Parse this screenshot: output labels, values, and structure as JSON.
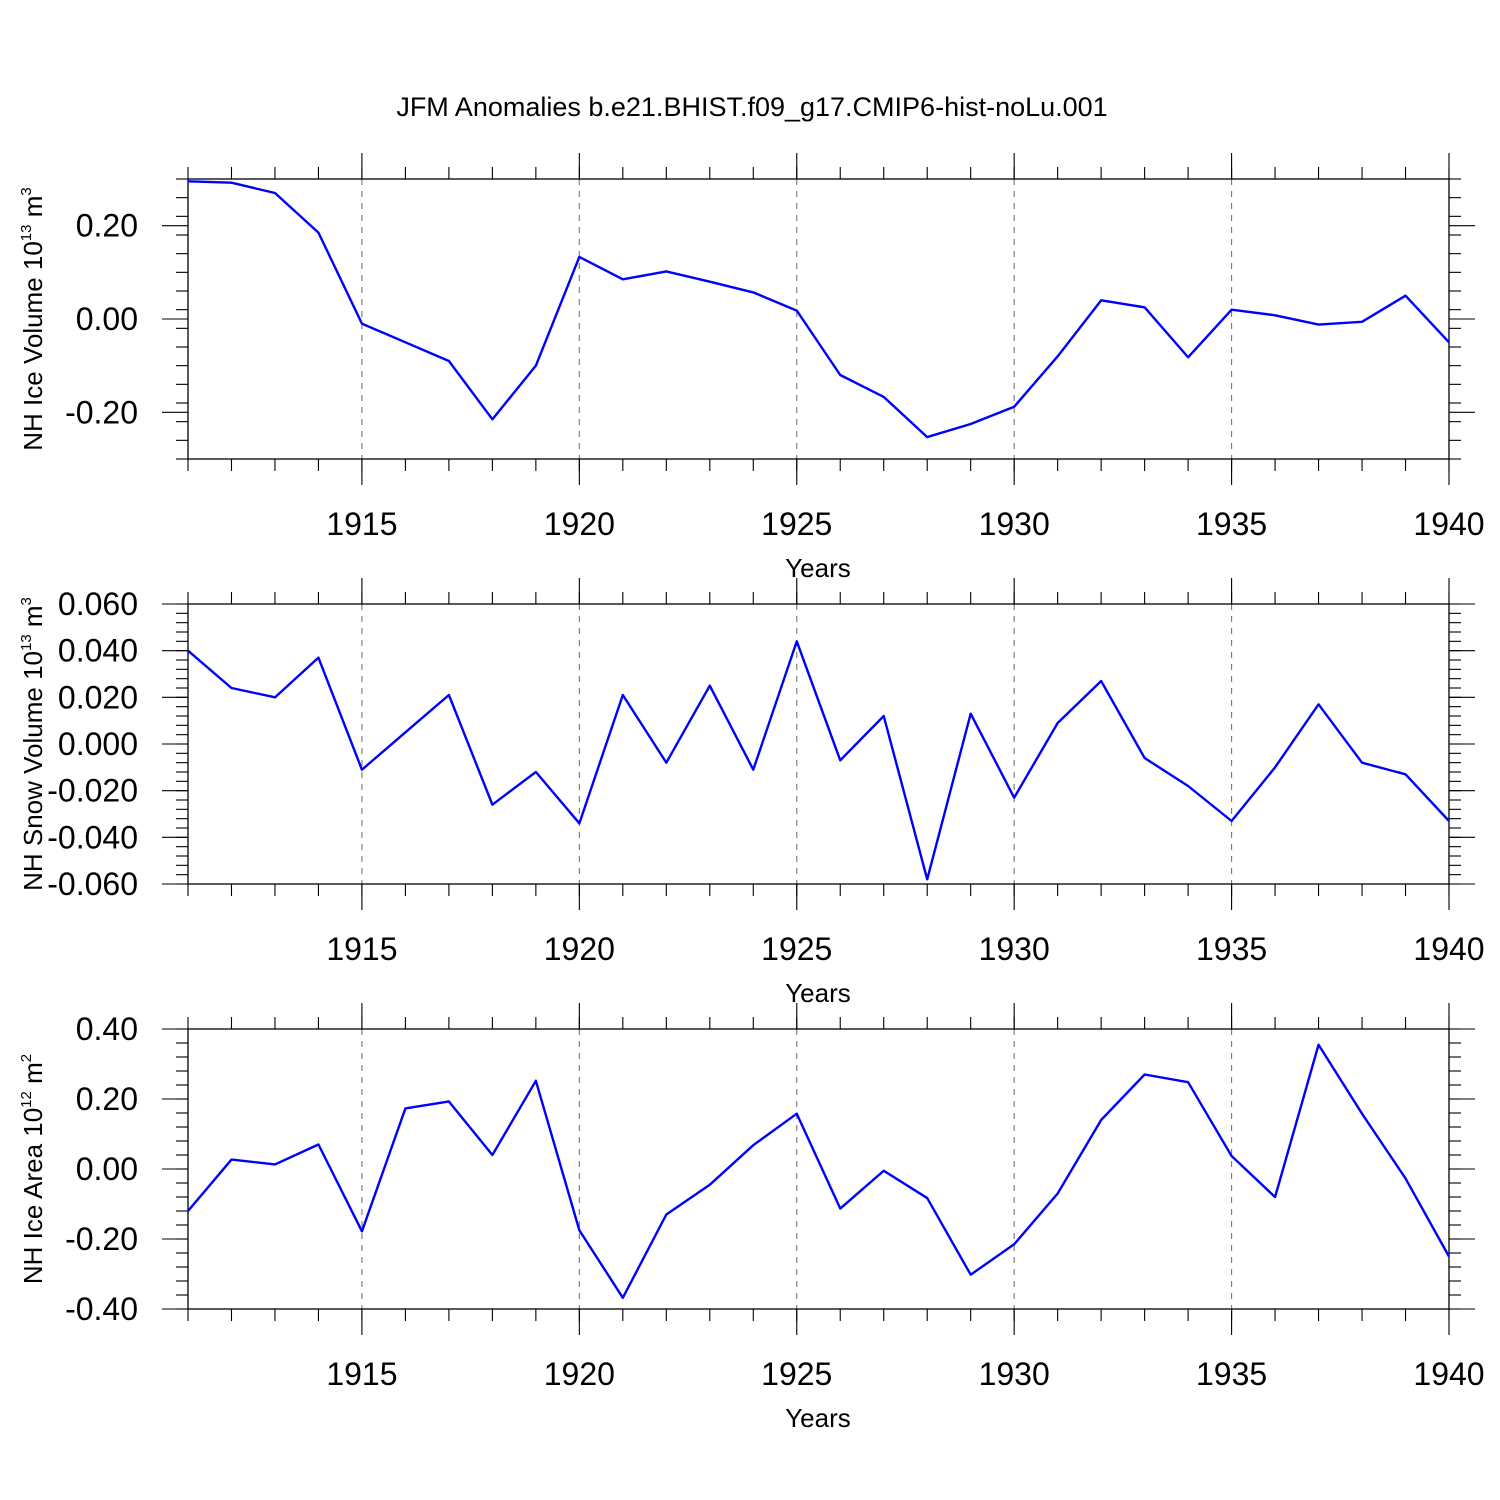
{
  "title": "JFM Anomalies b.e21.BHIST.f09_g17.CMIP6-hist-noLu.001",
  "series_color": "#0000ff",
  "chart_data": [
    {
      "type": "line",
      "name": "ice-volume",
      "ylabel_main": "NH Ice Volume 10",
      "ylabel_exp": "13",
      "ylabel_unit": " m",
      "ylabel_unit_exp": "3",
      "xlabel": "Years",
      "xlim": [
        1911,
        1940
      ],
      "ylim": [
        -0.3,
        0.3
      ],
      "yticks": [
        -0.2,
        0.0,
        0.2
      ],
      "ytick_labels": [
        "-0.20",
        "0.00",
        "0.20"
      ],
      "yminor_step": 0.04,
      "xticks": [
        1915,
        1920,
        1925,
        1930,
        1935,
        1940
      ],
      "xtick_labels": [
        "1915",
        "1920",
        "1925",
        "1930",
        "1935",
        "1940"
      ],
      "x": [
        1911,
        1912,
        1913,
        1914,
        1915,
        1916,
        1917,
        1918,
        1919,
        1920,
        1921,
        1922,
        1923,
        1924,
        1925,
        1926,
        1927,
        1928,
        1929,
        1930,
        1931,
        1932,
        1933,
        1934,
        1935,
        1936,
        1937,
        1938,
        1939,
        1940
      ],
      "y": [
        0.295,
        0.292,
        0.27,
        0.185,
        -0.01,
        -0.05,
        -0.09,
        -0.215,
        -0.1,
        0.133,
        0.085,
        0.102,
        0.08,
        0.057,
        0.018,
        -0.12,
        -0.167,
        -0.253,
        -0.225,
        -0.188,
        -0.08,
        0.04,
        0.025,
        -0.082,
        0.02,
        0.008,
        -0.012,
        -0.006,
        0.05,
        -0.05
      ]
    },
    {
      "type": "line",
      "name": "snow-volume",
      "ylabel_main": "NH Snow Volume 10",
      "ylabel_exp": "13",
      "ylabel_unit": " m",
      "ylabel_unit_exp": "3",
      "xlabel": "Years",
      "xlim": [
        1911,
        1940
      ],
      "ylim": [
        -0.06,
        0.06
      ],
      "yticks": [
        -0.06,
        -0.04,
        -0.02,
        0.0,
        0.02,
        0.04,
        0.06
      ],
      "ytick_labels": [
        "-0.060",
        "-0.040",
        "-0.020",
        "0.000",
        "0.020",
        "0.040",
        "0.060"
      ],
      "yminor_step": 0.004,
      "xticks": [
        1915,
        1920,
        1925,
        1930,
        1935,
        1940
      ],
      "xtick_labels": [
        "1915",
        "1920",
        "1925",
        "1930",
        "1935",
        "1940"
      ],
      "x": [
        1911,
        1912,
        1913,
        1914,
        1915,
        1916,
        1917,
        1918,
        1919,
        1920,
        1921,
        1922,
        1923,
        1924,
        1925,
        1926,
        1927,
        1928,
        1929,
        1930,
        1931,
        1932,
        1933,
        1934,
        1935,
        1936,
        1937,
        1938,
        1939,
        1940
      ],
      "y": [
        0.04,
        0.024,
        0.02,
        0.037,
        -0.011,
        0.005,
        0.021,
        -0.026,
        -0.012,
        -0.034,
        0.021,
        -0.008,
        0.025,
        -0.011,
        0.044,
        -0.007,
        0.012,
        -0.058,
        0.013,
        -0.023,
        0.009,
        0.027,
        -0.006,
        -0.018,
        -0.033,
        -0.01,
        0.017,
        -0.008,
        -0.013,
        -0.033
      ]
    },
    {
      "type": "line",
      "name": "ice-area",
      "ylabel_main": "NH Ice Area 10",
      "ylabel_exp": "12",
      "ylabel_unit": " m",
      "ylabel_unit_exp": "2",
      "xlabel": "Years",
      "xlim": [
        1911,
        1940
      ],
      "ylim": [
        -0.4,
        0.4
      ],
      "yticks": [
        -0.4,
        -0.2,
        0.0,
        0.2,
        0.4
      ],
      "ytick_labels": [
        "-0.40",
        "-0.20",
        "0.00",
        "0.20",
        "0.40"
      ],
      "yminor_step": 0.04,
      "xticks": [
        1915,
        1920,
        1925,
        1930,
        1935,
        1940
      ],
      "xtick_labels": [
        "1915",
        "1920",
        "1925",
        "1930",
        "1935",
        "1940"
      ],
      "x": [
        1911,
        1912,
        1913,
        1914,
        1915,
        1916,
        1917,
        1918,
        1919,
        1920,
        1921,
        1922,
        1923,
        1924,
        1925,
        1926,
        1927,
        1928,
        1929,
        1930,
        1931,
        1932,
        1933,
        1934,
        1935,
        1936,
        1937,
        1938,
        1939,
        1940
      ],
      "y": [
        -0.12,
        0.027,
        0.013,
        0.07,
        -0.178,
        0.173,
        0.193,
        0.04,
        0.252,
        -0.175,
        -0.368,
        -0.13,
        -0.045,
        0.068,
        0.158,
        -0.113,
        -0.005,
        -0.083,
        -0.302,
        -0.215,
        -0.07,
        0.14,
        0.27,
        0.248,
        0.037,
        -0.08,
        0.355,
        0.158,
        -0.027,
        -0.25
      ]
    }
  ]
}
